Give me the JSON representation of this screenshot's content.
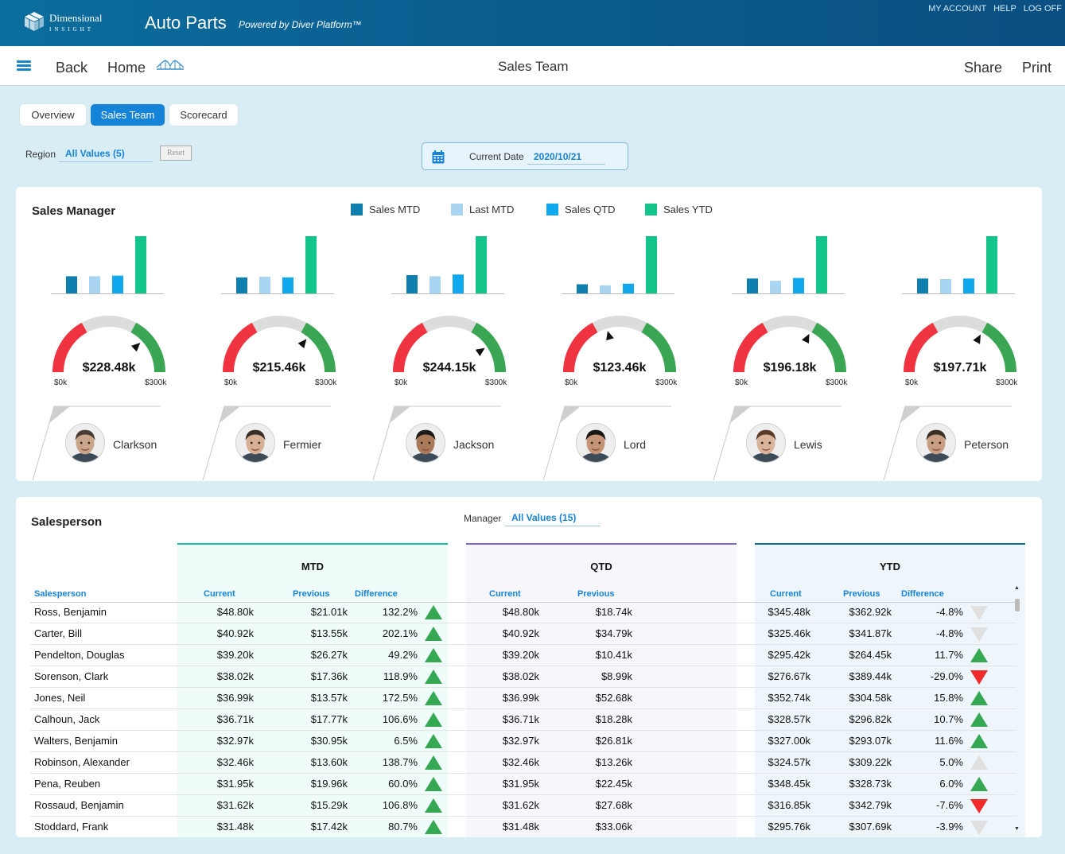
{
  "header": {
    "logo_name": "Dimensional",
    "logo_sub": "INSIGHT",
    "app_title": "Auto Parts",
    "powered_by": "Powered by Diver Platform™",
    "links": [
      "MY ACCOUNT",
      "HELP",
      "LOG OFF"
    ]
  },
  "nav": {
    "back": "Back",
    "home": "Home",
    "title": "Sales Team",
    "share": "Share",
    "print": "Print"
  },
  "tabs": [
    {
      "label": "Overview",
      "active": false
    },
    {
      "label": "Sales Team",
      "active": true
    },
    {
      "label": "Scorecard",
      "active": false
    }
  ],
  "filters": {
    "region_label": "Region",
    "region_value": "All Values (5)",
    "reset_label": "Reset",
    "date_label": "Current Date",
    "date_value": "2020/10/21"
  },
  "sales_manager": {
    "title": "Sales Manager",
    "legend": [
      {
        "label": "Sales MTD",
        "color": "#0e7fae"
      },
      {
        "label": "Last MTD",
        "color": "#a9d4f2"
      },
      {
        "label": "Sales QTD",
        "color": "#10a9ee"
      },
      {
        "label": "Sales YTD",
        "color": "#13c58a"
      }
    ],
    "gauge_min": "$0k",
    "gauge_max": "$300k",
    "gauge_colors": {
      "low": "#ef3340",
      "mid": "#dcdcdc",
      "high": "#3aa653"
    },
    "managers": [
      {
        "name": "Clarkson",
        "value": "$228.48k",
        "gauge_fraction": 0.76,
        "bars": [
          0.3,
          0.3,
          0.31,
          1.0
        ]
      },
      {
        "name": "Fermier",
        "value": "$215.46k",
        "gauge_fraction": 0.72,
        "bars": [
          0.28,
          0.29,
          0.28,
          1.0
        ]
      },
      {
        "name": "Jackson",
        "value": "$244.15k",
        "gauge_fraction": 0.81,
        "bars": [
          0.32,
          0.3,
          0.33,
          1.0
        ]
      },
      {
        "name": "Lord",
        "value": "$123.46k",
        "gauge_fraction": 0.41,
        "bars": [
          0.16,
          0.14,
          0.17,
          1.0
        ]
      },
      {
        "name": "Lewis",
        "value": "$196.18k",
        "gauge_fraction": 0.65,
        "bars": [
          0.26,
          0.22,
          0.27,
          1.0
        ]
      },
      {
        "name": "Peterson",
        "value": "$197.71k",
        "gauge_fraction": 0.66,
        "bars": [
          0.26,
          0.25,
          0.26,
          1.0
        ]
      }
    ]
  },
  "salesperson": {
    "title": "Salesperson",
    "manager_label": "Manager",
    "manager_value": "All Values (15)",
    "groups": [
      {
        "title": "MTD",
        "accent": "#1fbf9a",
        "bg": "#effcf9"
      },
      {
        "title": "QTD",
        "accent": "#7c65c9",
        "bg": "#f6f6fb"
      },
      {
        "title": "YTD",
        "accent": "#0c6a8a",
        "bg": "#eff6fb"
      }
    ],
    "columns": {
      "salesperson": "Salesperson",
      "current": "Current",
      "previous": "Previous",
      "difference": "Difference"
    },
    "rows": [
      {
        "name": "Ross, Benjamin",
        "mtd": [
          "$48.80k",
          "$21.01k",
          "132.2%"
        ],
        "mtd_dir": "up-g",
        "qtd": [
          "$48.80k",
          "$18.74k"
        ],
        "ytd": [
          "$345.48k",
          "$362.92k",
          "-4.8%"
        ],
        "ytd_dir": "dn-l"
      },
      {
        "name": "Carter, Bill",
        "mtd": [
          "$40.92k",
          "$13.55k",
          "202.1%"
        ],
        "mtd_dir": "up-g",
        "qtd": [
          "$40.92k",
          "$34.79k"
        ],
        "ytd": [
          "$325.46k",
          "$341.87k",
          "-4.8%"
        ],
        "ytd_dir": "dn-l"
      },
      {
        "name": "Pendelton, Douglas",
        "mtd": [
          "$39.20k",
          "$26.27k",
          "49.2%"
        ],
        "mtd_dir": "up-g",
        "qtd": [
          "$39.20k",
          "$10.41k"
        ],
        "ytd": [
          "$295.42k",
          "$264.45k",
          "11.7%"
        ],
        "ytd_dir": "up-g"
      },
      {
        "name": "Sorenson, Clark",
        "mtd": [
          "$38.02k",
          "$17.36k",
          "118.9%"
        ],
        "mtd_dir": "up-g",
        "qtd": [
          "$38.02k",
          "$8.99k"
        ],
        "ytd": [
          "$276.67k",
          "$389.44k",
          "-29.0%"
        ],
        "ytd_dir": "dn-r"
      },
      {
        "name": "Jones, Neil",
        "mtd": [
          "$36.99k",
          "$13.57k",
          "172.5%"
        ],
        "mtd_dir": "up-g",
        "qtd": [
          "$36.99k",
          "$52.68k"
        ],
        "ytd": [
          "$352.74k",
          "$304.58k",
          "15.8%"
        ],
        "ytd_dir": "up-g"
      },
      {
        "name": "Calhoun, Jack",
        "mtd": [
          "$36.71k",
          "$17.77k",
          "106.6%"
        ],
        "mtd_dir": "up-g",
        "qtd": [
          "$36.71k",
          "$18.28k"
        ],
        "ytd": [
          "$328.57k",
          "$296.82k",
          "10.7%"
        ],
        "ytd_dir": "up-g"
      },
      {
        "name": "Walters, Benjamin",
        "mtd": [
          "$32.97k",
          "$30.95k",
          "6.5%"
        ],
        "mtd_dir": "up-g",
        "qtd": [
          "$32.97k",
          "$26.81k"
        ],
        "ytd": [
          "$327.00k",
          "$293.07k",
          "11.6%"
        ],
        "ytd_dir": "up-g"
      },
      {
        "name": "Robinson, Alexander",
        "mtd": [
          "$32.46k",
          "$13.60k",
          "138.7%"
        ],
        "mtd_dir": "up-g",
        "qtd": [
          "$32.46k",
          "$13.26k"
        ],
        "ytd": [
          "$324.57k",
          "$309.22k",
          "5.0%"
        ],
        "ytd_dir": "up-l"
      },
      {
        "name": "Pena, Reuben",
        "mtd": [
          "$31.95k",
          "$19.96k",
          "60.0%"
        ],
        "mtd_dir": "up-g",
        "qtd": [
          "$31.95k",
          "$22.45k"
        ],
        "ytd": [
          "$348.45k",
          "$328.73k",
          "6.0%"
        ],
        "ytd_dir": "up-g"
      },
      {
        "name": "Rossaud, Benjamin",
        "mtd": [
          "$31.62k",
          "$15.29k",
          "106.8%"
        ],
        "mtd_dir": "up-g",
        "qtd": [
          "$31.62k",
          "$27.68k"
        ],
        "ytd": [
          "$316.85k",
          "$342.79k",
          "-7.6%"
        ],
        "ytd_dir": "dn-r"
      },
      {
        "name": "Stoddard, Frank",
        "mtd": [
          "$31.48k",
          "$17.42k",
          "80.7%"
        ],
        "mtd_dir": "up-g",
        "qtd": [
          "$31.48k",
          "$33.06k"
        ],
        "ytd": [
          "$295.76k",
          "$307.69k",
          "-3.9%"
        ],
        "ytd_dir": "dn-l"
      }
    ]
  }
}
